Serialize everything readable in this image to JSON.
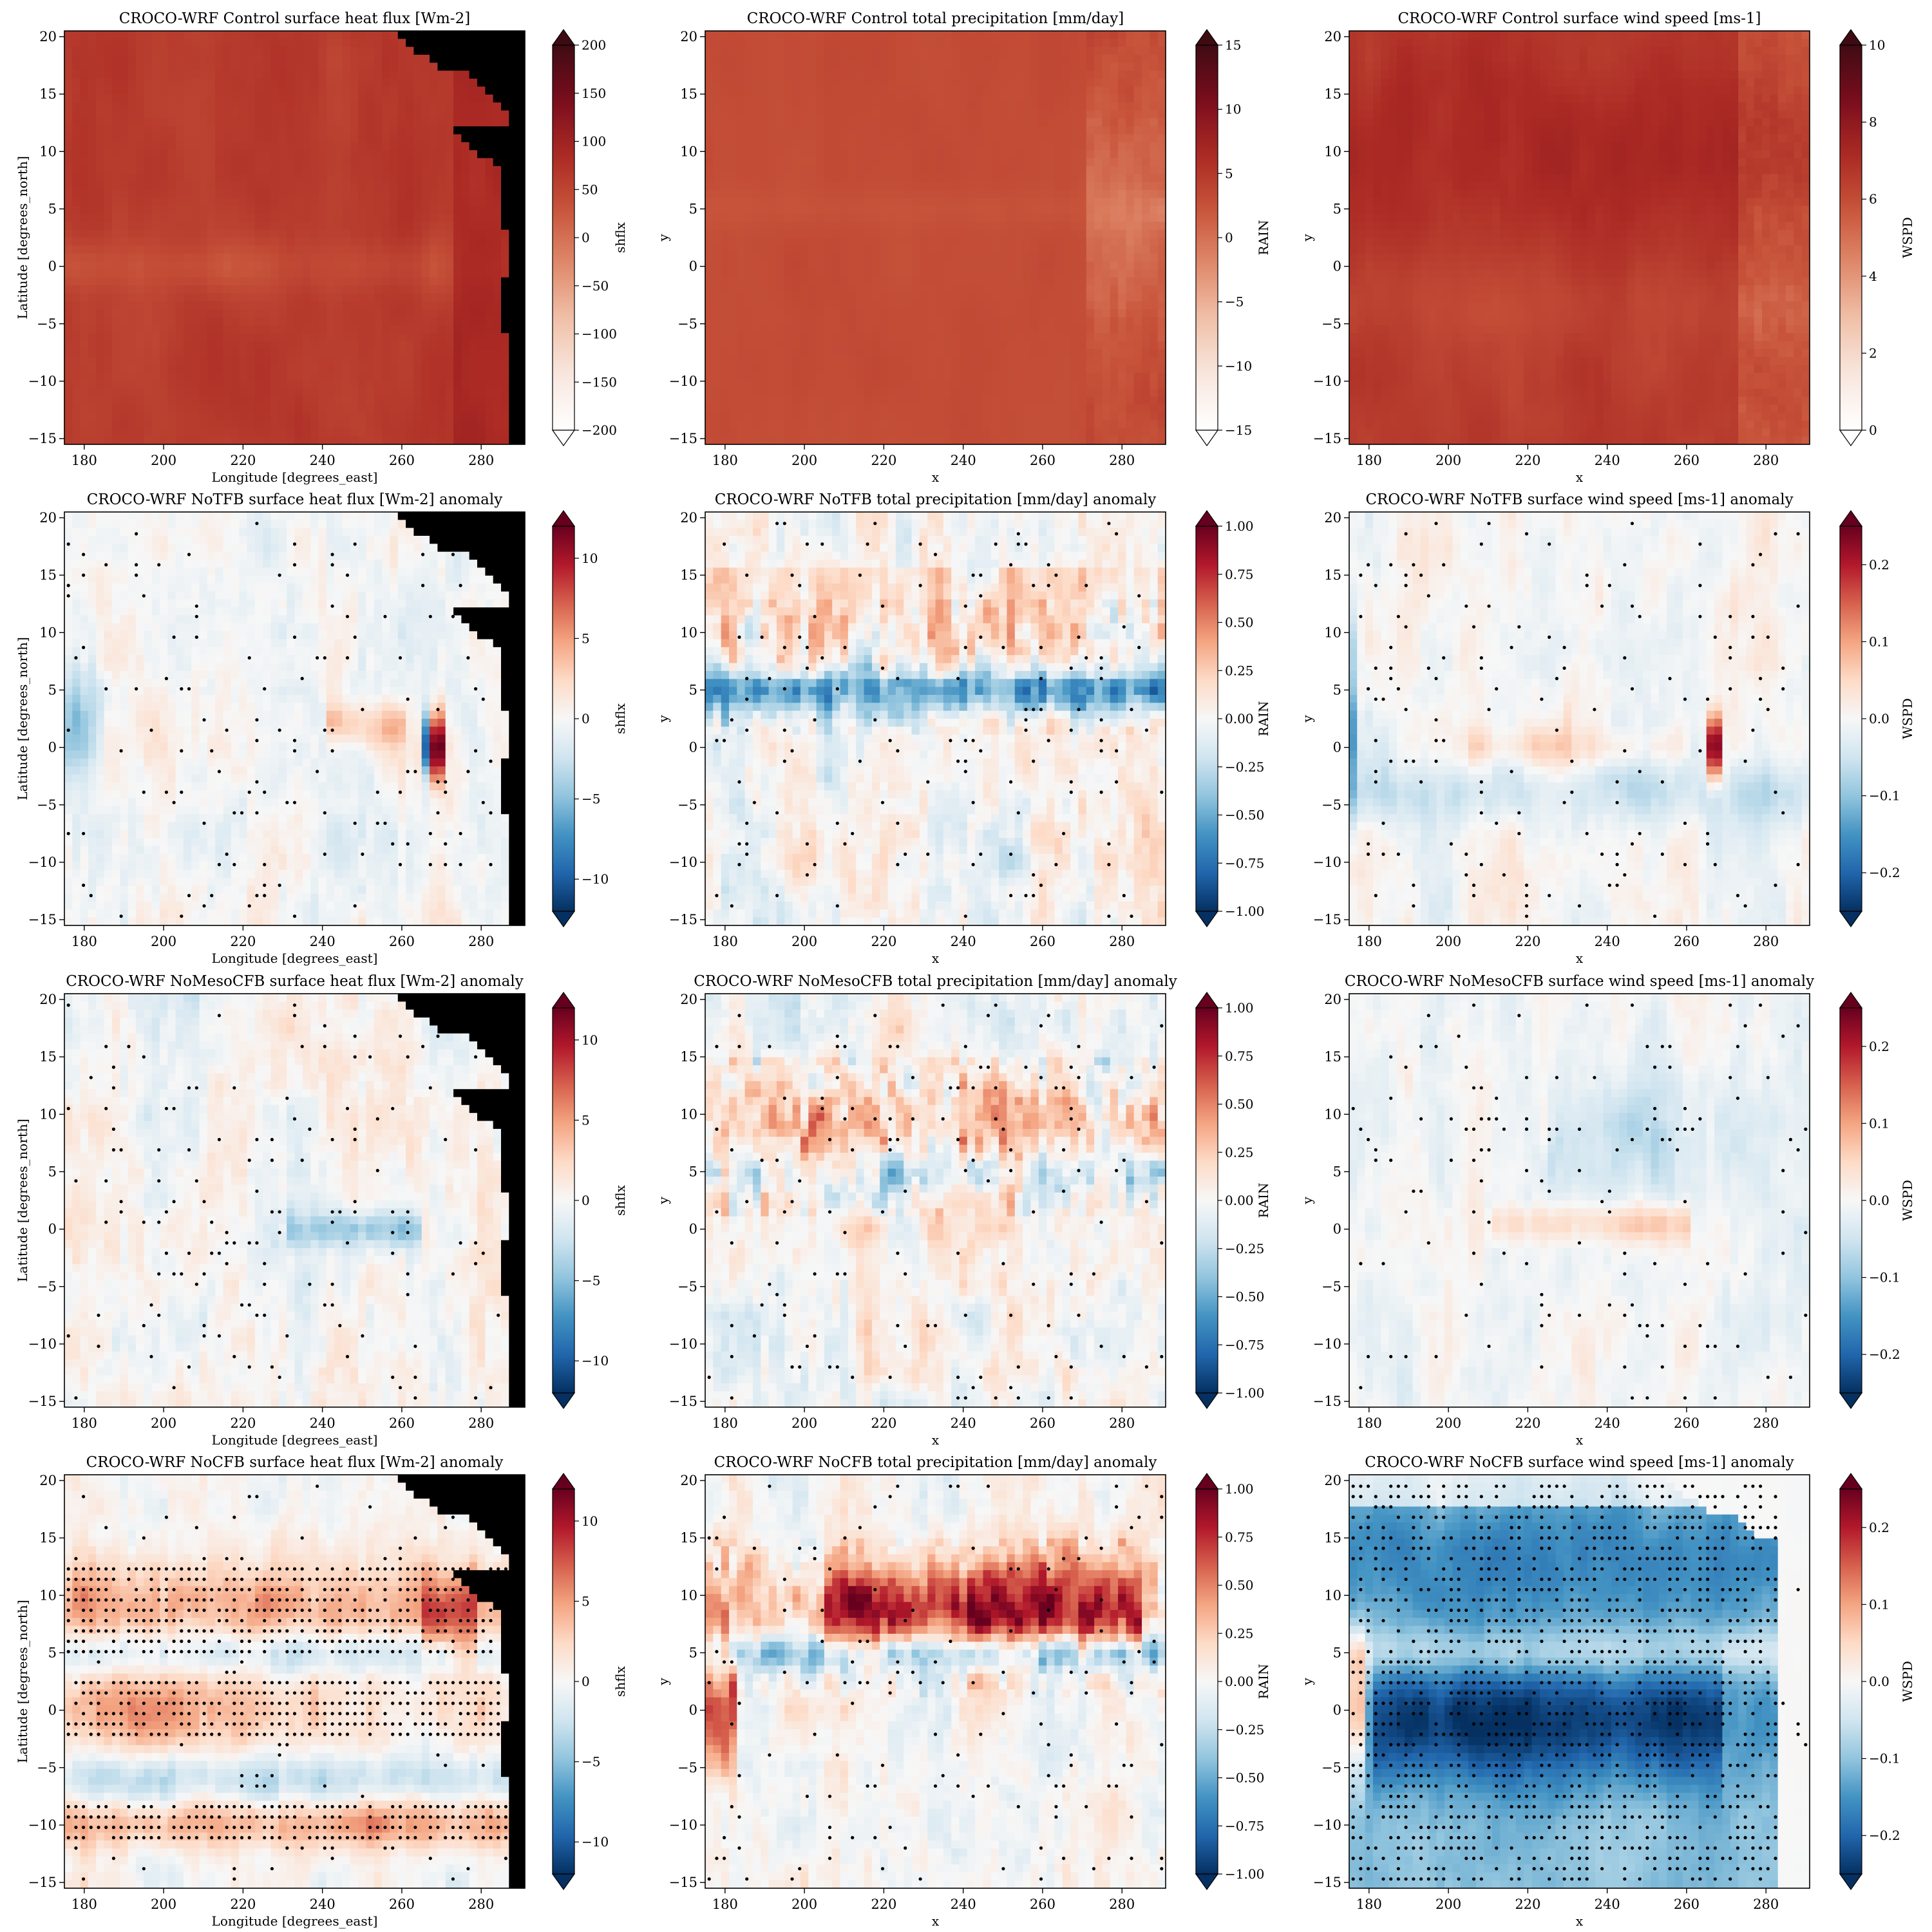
{
  "figure": {
    "colormap_diverging": [
      "#67001f",
      "#b2182b",
      "#d6604d",
      "#f4a582",
      "#fddbc7",
      "#f7f7f7",
      "#d1e5f0",
      "#92c5de",
      "#4393c3",
      "#2166ac",
      "#053061"
    ],
    "colormap_sequential": [
      "#ffffff",
      "#f8e7df",
      "#f1c2aa",
      "#e08a6c",
      "#c8553b",
      "#ab2a24",
      "#7a0d1d",
      "#3f0b13"
    ],
    "land_color": "#000000",
    "stipple_color": "#000000"
  },
  "chart_data": [
    {
      "type": "heatmap",
      "row": 0,
      "col": 0,
      "variant": "control-shflx",
      "title": "CROCO-WRF Control surface heat flux [Wm-2]",
      "xlabel": "Longitude [degrees_east]",
      "ylabel": "Latitude [degrees_north]",
      "x_ticks": [
        "180",
        "200",
        "220",
        "240",
        "260",
        "280"
      ],
      "y_ticks": [
        "20",
        "15",
        "10",
        "5",
        "0",
        "−5",
        "−10",
        "−15"
      ],
      "xlim": [
        175,
        291
      ],
      "ylim": [
        -15.5,
        20.5
      ],
      "land_mask": true,
      "colorbar": {
        "label": "shflx",
        "cmap": "sequential-diverging-red",
        "range": [
          -200,
          200
        ],
        "ticks": [
          "200",
          "150",
          "100",
          "50",
          "0",
          "−50",
          "−100",
          "−150",
          "−200"
        ]
      }
    },
    {
      "type": "heatmap",
      "row": 0,
      "col": 1,
      "variant": "control-rain",
      "title": "CROCO-WRF Control total precipitation [mm/day]",
      "xlabel": "x",
      "ylabel": "y",
      "x_ticks": [
        "180",
        "200",
        "220",
        "240",
        "260",
        "280"
      ],
      "y_ticks": [
        "20",
        "15",
        "10",
        "5",
        "0",
        "−5",
        "−10",
        "−15"
      ],
      "xlim": [
        175,
        291
      ],
      "ylim": [
        -15.5,
        20.5
      ],
      "land_mask": false,
      "colorbar": {
        "label": "RAIN",
        "cmap": "sequential-diverging-red",
        "range": [
          -15,
          15
        ],
        "ticks": [
          "15",
          "10",
          "5",
          "0",
          "−5",
          "−10",
          "−15"
        ]
      }
    },
    {
      "type": "heatmap",
      "row": 0,
      "col": 2,
      "variant": "control-wspd",
      "title": "CROCO-WRF Control surface wind speed [ms-1]",
      "xlabel": "x",
      "ylabel": "y",
      "x_ticks": [
        "180",
        "200",
        "220",
        "240",
        "260",
        "280"
      ],
      "y_ticks": [
        "20",
        "15",
        "10",
        "5",
        "0",
        "−5",
        "−10",
        "−15"
      ],
      "xlim": [
        175,
        291
      ],
      "ylim": [
        -15.5,
        20.5
      ],
      "land_mask": false,
      "colorbar": {
        "label": "WSPD",
        "cmap": "sequential-red",
        "range": [
          0,
          10
        ],
        "ticks": [
          "10",
          "8",
          "6",
          "4",
          "2",
          "0"
        ]
      }
    },
    {
      "type": "heatmap",
      "row": 1,
      "col": 0,
      "variant": "notfb-shflx",
      "title": "CROCO-WRF NoTFB surface heat flux [Wm-2] anomaly",
      "xlabel": "Longitude [degrees_east]",
      "ylabel": "Latitude [degrees_north]",
      "x_ticks": [
        "180",
        "200",
        "220",
        "240",
        "260",
        "280"
      ],
      "y_ticks": [
        "20",
        "15",
        "10",
        "5",
        "0",
        "−5",
        "−10",
        "−15"
      ],
      "xlim": [
        175,
        291
      ],
      "ylim": [
        -15.5,
        20.5
      ],
      "land_mask": true,
      "colorbar": {
        "label": "shflx",
        "cmap": "RdBu_r",
        "range": [
          -12,
          12
        ],
        "ticks": [
          "10",
          "5",
          "0",
          "−5",
          "−10"
        ]
      }
    },
    {
      "type": "heatmap",
      "row": 1,
      "col": 1,
      "variant": "notfb-rain",
      "title": "CROCO-WRF NoTFB total precipitation [mm/day] anomaly",
      "xlabel": "x",
      "ylabel": "y",
      "x_ticks": [
        "180",
        "200",
        "220",
        "240",
        "260",
        "280"
      ],
      "y_ticks": [
        "20",
        "15",
        "10",
        "5",
        "0",
        "−5",
        "−10",
        "−15"
      ],
      "xlim": [
        175,
        291
      ],
      "ylim": [
        -15.5,
        20.5
      ],
      "land_mask": false,
      "colorbar": {
        "label": "RAIN",
        "cmap": "RdBu_r",
        "range": [
          -1,
          1
        ],
        "ticks": [
          "1.00",
          "0.75",
          "0.50",
          "0.25",
          "0.00",
          "−0.25",
          "−0.50",
          "−0.75",
          "−1.00"
        ]
      }
    },
    {
      "type": "heatmap",
      "row": 1,
      "col": 2,
      "variant": "notfb-wspd",
      "title": "CROCO-WRF NoTFB surface wind speed [ms-1] anomaly",
      "xlabel": "x",
      "ylabel": "y",
      "x_ticks": [
        "180",
        "200",
        "220",
        "240",
        "260",
        "280"
      ],
      "y_ticks": [
        "20",
        "15",
        "10",
        "5",
        "0",
        "−5",
        "−10",
        "−15"
      ],
      "xlim": [
        175,
        291
      ],
      "ylim": [
        -15.5,
        20.5
      ],
      "land_mask": false,
      "colorbar": {
        "label": "WSPD",
        "cmap": "RdBu_r",
        "range": [
          -0.25,
          0.25
        ],
        "ticks": [
          "0.2",
          "0.1",
          "0.0",
          "−0.1",
          "−0.2"
        ]
      }
    },
    {
      "type": "heatmap",
      "row": 2,
      "col": 0,
      "variant": "nomeso-shflx",
      "title": "CROCO-WRF NoMesoCFB surface heat flux [Wm-2] anomaly",
      "xlabel": "Longitude [degrees_east]",
      "ylabel": "Latitude [degrees_north]",
      "x_ticks": [
        "180",
        "200",
        "220",
        "240",
        "260",
        "280"
      ],
      "y_ticks": [
        "20",
        "15",
        "10",
        "5",
        "0",
        "−5",
        "−10",
        "−15"
      ],
      "xlim": [
        175,
        291
      ],
      "ylim": [
        -15.5,
        20.5
      ],
      "land_mask": true,
      "colorbar": {
        "label": "shflx",
        "cmap": "RdBu_r",
        "range": [
          -12,
          12
        ],
        "ticks": [
          "10",
          "5",
          "0",
          "−5",
          "−10"
        ]
      }
    },
    {
      "type": "heatmap",
      "row": 2,
      "col": 1,
      "variant": "nomeso-rain",
      "title": "CROCO-WRF NoMesoCFB total precipitation [mm/day] anomaly",
      "xlabel": "x",
      "ylabel": "y",
      "x_ticks": [
        "180",
        "200",
        "220",
        "240",
        "260",
        "280"
      ],
      "y_ticks": [
        "20",
        "15",
        "10",
        "5",
        "0",
        "−5",
        "−10",
        "−15"
      ],
      "xlim": [
        175,
        291
      ],
      "ylim": [
        -15.5,
        20.5
      ],
      "land_mask": false,
      "colorbar": {
        "label": "RAIN",
        "cmap": "RdBu_r",
        "range": [
          -1,
          1
        ],
        "ticks": [
          "1.00",
          "0.75",
          "0.50",
          "0.25",
          "0.00",
          "−0.25",
          "−0.50",
          "−0.75",
          "−1.00"
        ]
      }
    },
    {
      "type": "heatmap",
      "row": 2,
      "col": 2,
      "variant": "nomeso-wspd",
      "title": "CROCO-WRF NoMesoCFB surface wind speed [ms-1] anomaly",
      "xlabel": "x",
      "ylabel": "y",
      "x_ticks": [
        "180",
        "200",
        "220",
        "240",
        "260",
        "280"
      ],
      "y_ticks": [
        "20",
        "15",
        "10",
        "5",
        "0",
        "−5",
        "−10",
        "−15"
      ],
      "xlim": [
        175,
        291
      ],
      "ylim": [
        -15.5,
        20.5
      ],
      "land_mask": false,
      "colorbar": {
        "label": "WSPD",
        "cmap": "RdBu_r",
        "range": [
          -0.25,
          0.25
        ],
        "ticks": [
          "0.2",
          "0.1",
          "0.0",
          "−0.1",
          "−0.2"
        ]
      }
    },
    {
      "type": "heatmap",
      "row": 3,
      "col": 0,
      "variant": "nocfb-shflx",
      "title": "CROCO-WRF NoCFB surface heat flux [Wm-2] anomaly",
      "xlabel": "Longitude [degrees_east]",
      "ylabel": "Latitude [degrees_north]",
      "x_ticks": [
        "180",
        "200",
        "220",
        "240",
        "260",
        "280"
      ],
      "y_ticks": [
        "20",
        "15",
        "10",
        "5",
        "0",
        "−5",
        "−10",
        "−15"
      ],
      "xlim": [
        175,
        291
      ],
      "ylim": [
        -15.5,
        20.5
      ],
      "land_mask": true,
      "colorbar": {
        "label": "shflx",
        "cmap": "RdBu_r",
        "range": [
          -12,
          12
        ],
        "ticks": [
          "10",
          "5",
          "0",
          "−5",
          "−10"
        ]
      }
    },
    {
      "type": "heatmap",
      "row": 3,
      "col": 1,
      "variant": "nocfb-rain",
      "title": "CROCO-WRF NoCFB total precipitation [mm/day] anomaly",
      "xlabel": "x",
      "ylabel": "y",
      "x_ticks": [
        "180",
        "200",
        "220",
        "240",
        "260",
        "280"
      ],
      "y_ticks": [
        "20",
        "15",
        "10",
        "5",
        "0",
        "−5",
        "−10",
        "−15"
      ],
      "xlim": [
        175,
        291
      ],
      "ylim": [
        -15.5,
        20.5
      ],
      "land_mask": false,
      "colorbar": {
        "label": "RAIN",
        "cmap": "RdBu_r",
        "range": [
          -1,
          1
        ],
        "ticks": [
          "1.00",
          "0.75",
          "0.50",
          "0.25",
          "0.00",
          "−0.25",
          "−0.50",
          "−0.75",
          "−1.00"
        ]
      }
    },
    {
      "type": "heatmap",
      "row": 3,
      "col": 2,
      "variant": "nocfb-wspd",
      "title": "CROCO-WRF NoCFB surface wind speed [ms-1] anomaly",
      "xlabel": "x",
      "ylabel": "y",
      "x_ticks": [
        "180",
        "200",
        "220",
        "240",
        "260",
        "280"
      ],
      "y_ticks": [
        "20",
        "15",
        "10",
        "5",
        "0",
        "−5",
        "−10",
        "−15"
      ],
      "xlim": [
        175,
        291
      ],
      "ylim": [
        -15.5,
        20.5
      ],
      "land_mask": false,
      "colorbar": {
        "label": "WSPD",
        "cmap": "RdBu_r",
        "range": [
          -0.25,
          0.25
        ],
        "ticks": [
          "0.2",
          "0.1",
          "0.0",
          "−0.1",
          "−0.2"
        ]
      }
    }
  ]
}
